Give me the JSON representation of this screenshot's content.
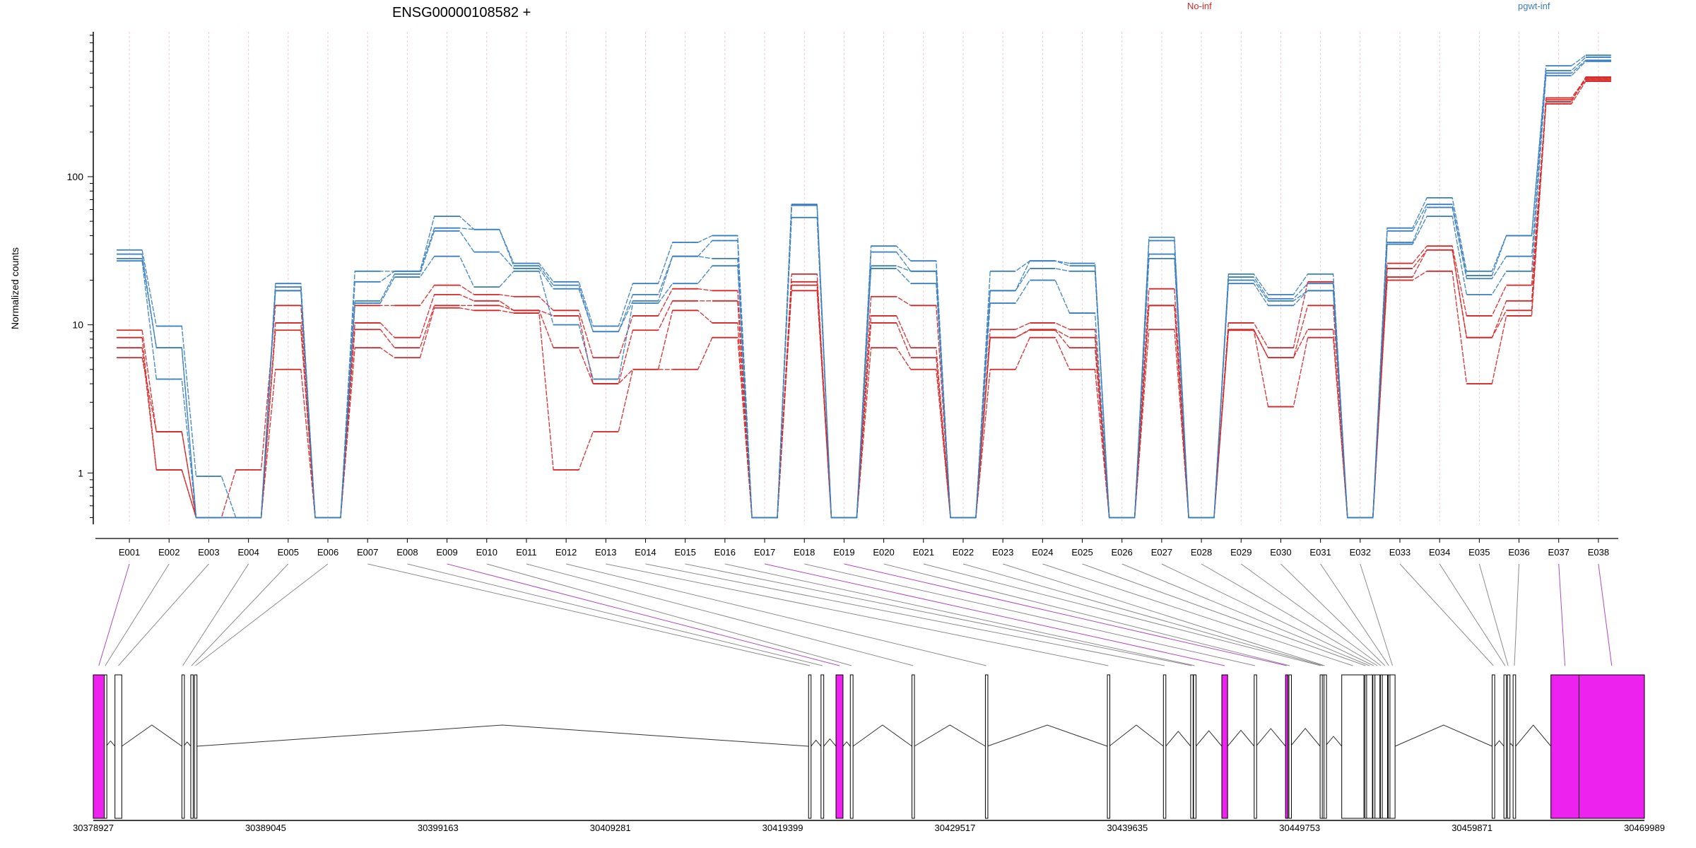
{
  "chart_data": {
    "type": "line",
    "title": "ENSG00000108582 +",
    "ylabel": "Normalized counts",
    "yscale": "log",
    "ylim": [
      0.45,
      950
    ],
    "yticks": [
      1,
      10,
      100
    ],
    "grid": "vertical dashed at exon midpoints",
    "legend": "top",
    "legend_entries": [
      {
        "name": "No-inf",
        "color": "#d62728"
      },
      {
        "name": "pgwt-inf",
        "color": "#3a7fc0"
      }
    ],
    "categories": [
      "E001",
      "E002",
      "E003",
      "E004",
      "E005",
      "E006",
      "E007",
      "E008",
      "E009",
      "E010",
      "E011",
      "E012",
      "E013",
      "E014",
      "E015",
      "E016",
      "E017",
      "E018",
      "E019",
      "E020",
      "E021",
      "E022",
      "E023",
      "E024",
      "E025",
      "E026",
      "E027",
      "E028",
      "E029",
      "E030",
      "E031",
      "E032",
      "E033",
      "E034",
      "E035",
      "E036",
      "E037",
      "E038"
    ],
    "series": [
      {
        "group": "No-inf",
        "values": [
          9.2,
          1.9,
          0.5,
          1.05,
          13.5,
          0.5,
          13.5,
          13.5,
          18.5,
          16,
          15.5,
          12.5,
          6,
          11.5,
          17.5,
          17,
          0.5,
          22,
          0.5,
          15.5,
          13.5,
          0.5,
          9.3,
          10.3,
          9.3,
          0.5,
          17.5,
          0.5,
          10.3,
          7,
          19.5,
          0.5,
          26,
          34,
          11.5,
          18.5,
          320,
          470
        ]
      },
      {
        "group": "No-inf",
        "values": [
          8.2,
          1.05,
          0.5,
          0.5,
          10.3,
          0.5,
          10.3,
          8.2,
          16,
          14.5,
          12.5,
          11.5,
          4,
          9.2,
          14.5,
          14.5,
          0.5,
          19.5,
          0.5,
          11.5,
          7,
          0.5,
          8.2,
          9.3,
          8.2,
          0.5,
          13.5,
          0.5,
          9.2,
          6,
          13.5,
          0.5,
          24,
          32,
          8.2,
          14.5,
          330,
          450
        ]
      },
      {
        "group": "No-inf",
        "values": [
          7,
          1.05,
          0.5,
          0.5,
          9.2,
          0.5,
          9.3,
          7,
          13.5,
          13.5,
          12.5,
          7,
          4,
          5,
          12.5,
          10.3,
          0.5,
          18.5,
          0.5,
          10.3,
          6,
          0.5,
          8.2,
          9.2,
          7,
          0.5,
          13.5,
          0.5,
          9.3,
          6,
          9.3,
          0.5,
          21,
          32,
          8.2,
          12.5,
          340,
          460
        ]
      },
      {
        "group": "No-inf",
        "values": [
          6,
          1.9,
          0.5,
          0.5,
          5,
          0.5,
          7,
          6,
          13,
          12.5,
          12,
          1.05,
          1.9,
          5,
          5,
          8.2,
          0.5,
          17,
          0.5,
          7,
          5,
          0.5,
          5,
          8.2,
          5,
          0.5,
          9.3,
          0.5,
          9.2,
          2.8,
          8.2,
          0.5,
          20,
          23,
          4,
          11.5,
          310,
          440
        ]
      },
      {
        "group": "pgwt-inf",
        "values": [
          32,
          9.8,
          0.95,
          0.5,
          19,
          0.5,
          23,
          23,
          54,
          44,
          26,
          19.5,
          9.8,
          19,
          36,
          40,
          0.5,
          65,
          0.5,
          34,
          27,
          0.5,
          23,
          27,
          26,
          0.5,
          39,
          0.5,
          22,
          16,
          22,
          0.5,
          45,
          72,
          23,
          40,
          560,
          660
        ]
      },
      {
        "group": "pgwt-inf",
        "values": [
          30,
          7,
          0.5,
          0.5,
          18,
          0.5,
          19.5,
          23,
          45,
          44,
          25,
          18.5,
          9,
          16,
          29,
          37,
          0.5,
          64,
          0.5,
          31,
          23,
          0.5,
          17,
          27,
          25,
          0.5,
          37,
          0.5,
          21,
          15,
          19,
          0.5,
          43,
          65,
          21.5,
          40,
          520,
          640
        ]
      },
      {
        "group": "pgwt-inf",
        "values": [
          28,
          7,
          0.5,
          0.5,
          17,
          0.5,
          14.5,
          22,
          43,
          31,
          24,
          17.5,
          9,
          14.5,
          29,
          28,
          0.5,
          64,
          0.5,
          25,
          23,
          0.5,
          17,
          24,
          23,
          0.5,
          30,
          0.5,
          20,
          14.5,
          17,
          0.5,
          36,
          62,
          20.5,
          29,
          500,
          610
        ]
      },
      {
        "group": "pgwt-inf",
        "values": [
          27,
          4.3,
          0.5,
          0.5,
          17,
          0.5,
          14,
          21,
          29,
          18,
          23,
          10,
          4.3,
          14,
          19,
          25,
          0.5,
          53,
          0.5,
          24,
          19,
          0.5,
          14,
          20,
          12,
          0.5,
          28,
          0.5,
          19,
          13.5,
          17,
          0.5,
          35,
          54,
          16,
          23,
          480,
          600
        ]
      }
    ],
    "genome": {
      "start": 30378927,
      "end": 30469989,
      "tick_labels": [
        "30378927",
        "30389045",
        "30399163",
        "30409281",
        "30419399",
        "30429517",
        "30439635",
        "30449753",
        "30459871",
        "30469989"
      ],
      "tick_positions": [
        30378927,
        30389045,
        30399163,
        30409281,
        30419399,
        30429517,
        30439635,
        30449753,
        30459871,
        30469989
      ],
      "exons": [
        {
          "id": "E001",
          "start": 30378927,
          "end": 30379577,
          "highlight": true
        },
        {
          "id": "E002",
          "start": 30379577,
          "end": 30379680,
          "highlight": false
        },
        {
          "id": "E003",
          "start": 30380200,
          "end": 30380600,
          "highlight": false
        },
        {
          "id": "E004",
          "start": 30384130,
          "end": 30384230,
          "highlight": false
        },
        {
          "id": "E005",
          "start": 30384650,
          "end": 30384750,
          "highlight": false
        },
        {
          "id": "E006",
          "start": 30384870,
          "end": 30384980,
          "highlight": false
        },
        {
          "id": "E007",
          "start": 30420920,
          "end": 30421060,
          "highlight": false
        },
        {
          "id": "E008",
          "start": 30421650,
          "end": 30421810,
          "highlight": false
        },
        {
          "id": "E009",
          "start": 30422530,
          "end": 30422940,
          "highlight": true
        },
        {
          "id": "E010",
          "start": 30423370,
          "end": 30423530,
          "highlight": false
        },
        {
          "id": "E011",
          "start": 30426990,
          "end": 30427130,
          "highlight": false
        },
        {
          "id": "E012",
          "start": 30431300,
          "end": 30431410,
          "highlight": false
        },
        {
          "id": "E013",
          "start": 30438460,
          "end": 30438570,
          "highlight": false
        },
        {
          "id": "E014",
          "start": 30441750,
          "end": 30441890,
          "highlight": false
        },
        {
          "id": "E015",
          "start": 30443350,
          "end": 30443470,
          "highlight": false
        },
        {
          "id": "E016",
          "start": 30443520,
          "end": 30443660,
          "highlight": false
        },
        {
          "id": "E017",
          "start": 30445180,
          "end": 30445520,
          "highlight": true
        },
        {
          "id": "E018",
          "start": 30447080,
          "end": 30447190,
          "highlight": false
        },
        {
          "id": "E019",
          "start": 30448920,
          "end": 30449060,
          "highlight": true
        },
        {
          "id": "E020",
          "start": 30449120,
          "end": 30449210,
          "highlight": false
        },
        {
          "id": "E021",
          "start": 30450950,
          "end": 30451020,
          "highlight": false
        },
        {
          "id": "E022",
          "start": 30451080,
          "end": 30451130,
          "highlight": false
        },
        {
          "id": "E023",
          "start": 30451180,
          "end": 30451250,
          "highlight": false
        },
        {
          "id": "E024",
          "start": 30452220,
          "end": 30453520,
          "highlight": false
        },
        {
          "id": "E025",
          "start": 30453580,
          "end": 30453650,
          "highlight": false
        },
        {
          "id": "E026",
          "start": 30453680,
          "end": 30454020,
          "highlight": false
        },
        {
          "id": "E027",
          "start": 30454050,
          "end": 30454130,
          "highlight": false
        },
        {
          "id": "E028",
          "start": 30454170,
          "end": 30454460,
          "highlight": false
        },
        {
          "id": "E029",
          "start": 30454490,
          "end": 30454560,
          "highlight": false
        },
        {
          "id": "E030",
          "start": 30454600,
          "end": 30454910,
          "highlight": false
        },
        {
          "id": "E031",
          "start": 30454950,
          "end": 30455020,
          "highlight": false
        },
        {
          "id": "E032",
          "start": 30455050,
          "end": 30455350,
          "highlight": false
        },
        {
          "id": "E033",
          "start": 30461050,
          "end": 30461200,
          "highlight": false
        },
        {
          "id": "E034",
          "start": 30461740,
          "end": 30461880,
          "highlight": false
        },
        {
          "id": "E035",
          "start": 30461950,
          "end": 30462020,
          "highlight": false
        },
        {
          "id": "E036",
          "start": 30462280,
          "end": 30462430,
          "highlight": false
        },
        {
          "id": "E037",
          "start": 30464500,
          "end": 30466150,
          "highlight": true
        },
        {
          "id": "E038",
          "start": 30466150,
          "end": 30469989,
          "highlight": true
        }
      ]
    }
  },
  "colors": {
    "no_inf": "#d62728",
    "pgwt_inf": "#3a7fc0",
    "highlight": "#ee22ee",
    "grid": "#f2c9c9",
    "axis": "#000000"
  }
}
